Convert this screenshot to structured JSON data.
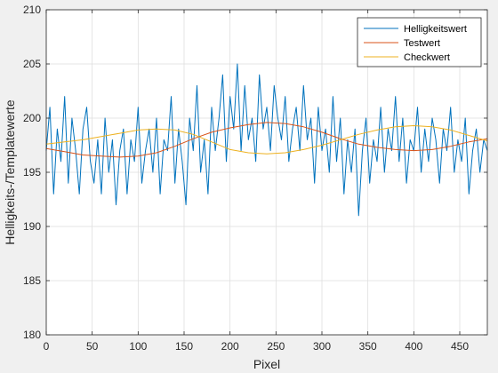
{
  "chart_data": {
    "type": "line",
    "xlabel": "Pixel",
    "ylabel": "Helligkeits-/Templatewerte",
    "xlim": [
      0,
      480
    ],
    "ylim": [
      180,
      210
    ],
    "xticks": [
      0,
      50,
      100,
      150,
      200,
      250,
      300,
      350,
      400,
      450
    ],
    "yticks": [
      180,
      185,
      190,
      195,
      200,
      205,
      210
    ],
    "grid": true,
    "legend_position": "top-right",
    "series": [
      {
        "name": "Helligkeitswert",
        "color": "#0072bd",
        "x": [
          0,
          4,
          8,
          12,
          16,
          20,
          24,
          28,
          32,
          36,
          40,
          44,
          48,
          52,
          56,
          60,
          64,
          68,
          72,
          76,
          80,
          84,
          88,
          92,
          96,
          100,
          104,
          108,
          112,
          116,
          120,
          124,
          128,
          132,
          136,
          140,
          144,
          148,
          152,
          156,
          160,
          164,
          168,
          172,
          176,
          180,
          184,
          188,
          192,
          196,
          200,
          204,
          208,
          212,
          216,
          220,
          224,
          228,
          232,
          236,
          240,
          244,
          248,
          252,
          256,
          260,
          264,
          268,
          272,
          276,
          280,
          284,
          288,
          292,
          296,
          300,
          304,
          308,
          312,
          316,
          320,
          324,
          328,
          332,
          336,
          340,
          344,
          348,
          352,
          356,
          360,
          364,
          368,
          372,
          376,
          380,
          384,
          388,
          392,
          396,
          400,
          404,
          408,
          412,
          416,
          420,
          424,
          428,
          432,
          436,
          440,
          444,
          448,
          452,
          456,
          460,
          464,
          468,
          472,
          476,
          480
        ],
        "values": [
          197,
          201,
          193,
          199,
          196,
          202,
          194,
          200,
          197,
          193,
          199,
          201,
          196,
          194,
          198,
          193,
          200,
          195,
          198,
          192,
          197,
          199,
          193,
          198,
          196,
          201,
          194,
          197,
          199,
          195,
          200,
          193,
          198,
          197,
          202,
          194,
          199,
          196,
          192,
          200,
          197,
          203,
          195,
          198,
          193,
          201,
          197,
          200,
          204,
          196,
          202,
          199,
          205,
          197,
          203,
          198,
          200,
          196,
          204,
          199,
          201,
          197,
          203,
          200,
          198,
          202,
          196,
          199,
          201,
          197,
          203,
          198,
          200,
          194,
          201,
          197,
          199,
          195,
          202,
          196,
          200,
          193,
          198,
          195,
          199,
          191,
          197,
          200,
          194,
          198,
          196,
          201,
          195,
          199,
          197,
          202,
          196,
          200,
          194,
          198,
          197,
          201,
          195,
          199,
          196,
          200,
          198,
          194,
          199,
          197,
          201,
          195,
          198,
          196,
          200,
          193,
          197,
          199,
          195,
          198,
          197
        ]
      },
      {
        "name": "Testwert",
        "color": "#d95319",
        "x": [
          0,
          20,
          40,
          60,
          80,
          100,
          120,
          140,
          160,
          180,
          200,
          220,
          240,
          260,
          280,
          300,
          320,
          340,
          360,
          380,
          400,
          420,
          440,
          460,
          480
        ],
        "values": [
          197.2,
          196.9,
          196.6,
          196.5,
          196.4,
          196.5,
          196.8,
          197.4,
          198.1,
          198.7,
          199.1,
          199.4,
          199.6,
          199.5,
          199.2,
          198.7,
          198.1,
          197.6,
          197.3,
          197.1,
          197.0,
          197.1,
          197.4,
          197.8,
          198.1
        ]
      },
      {
        "name": "Checkwert",
        "color": "#edb120",
        "x": [
          0,
          20,
          40,
          60,
          80,
          100,
          120,
          140,
          160,
          180,
          200,
          220,
          240,
          260,
          280,
          300,
          320,
          340,
          360,
          380,
          400,
          420,
          440,
          460,
          480
        ],
        "values": [
          197.6,
          197.8,
          198.0,
          198.3,
          198.6,
          198.9,
          199.0,
          198.9,
          198.5,
          197.8,
          197.1,
          196.8,
          196.7,
          196.8,
          197.1,
          197.5,
          198.0,
          198.5,
          198.9,
          199.2,
          199.3,
          199.2,
          198.9,
          198.4,
          197.9
        ]
      }
    ]
  }
}
